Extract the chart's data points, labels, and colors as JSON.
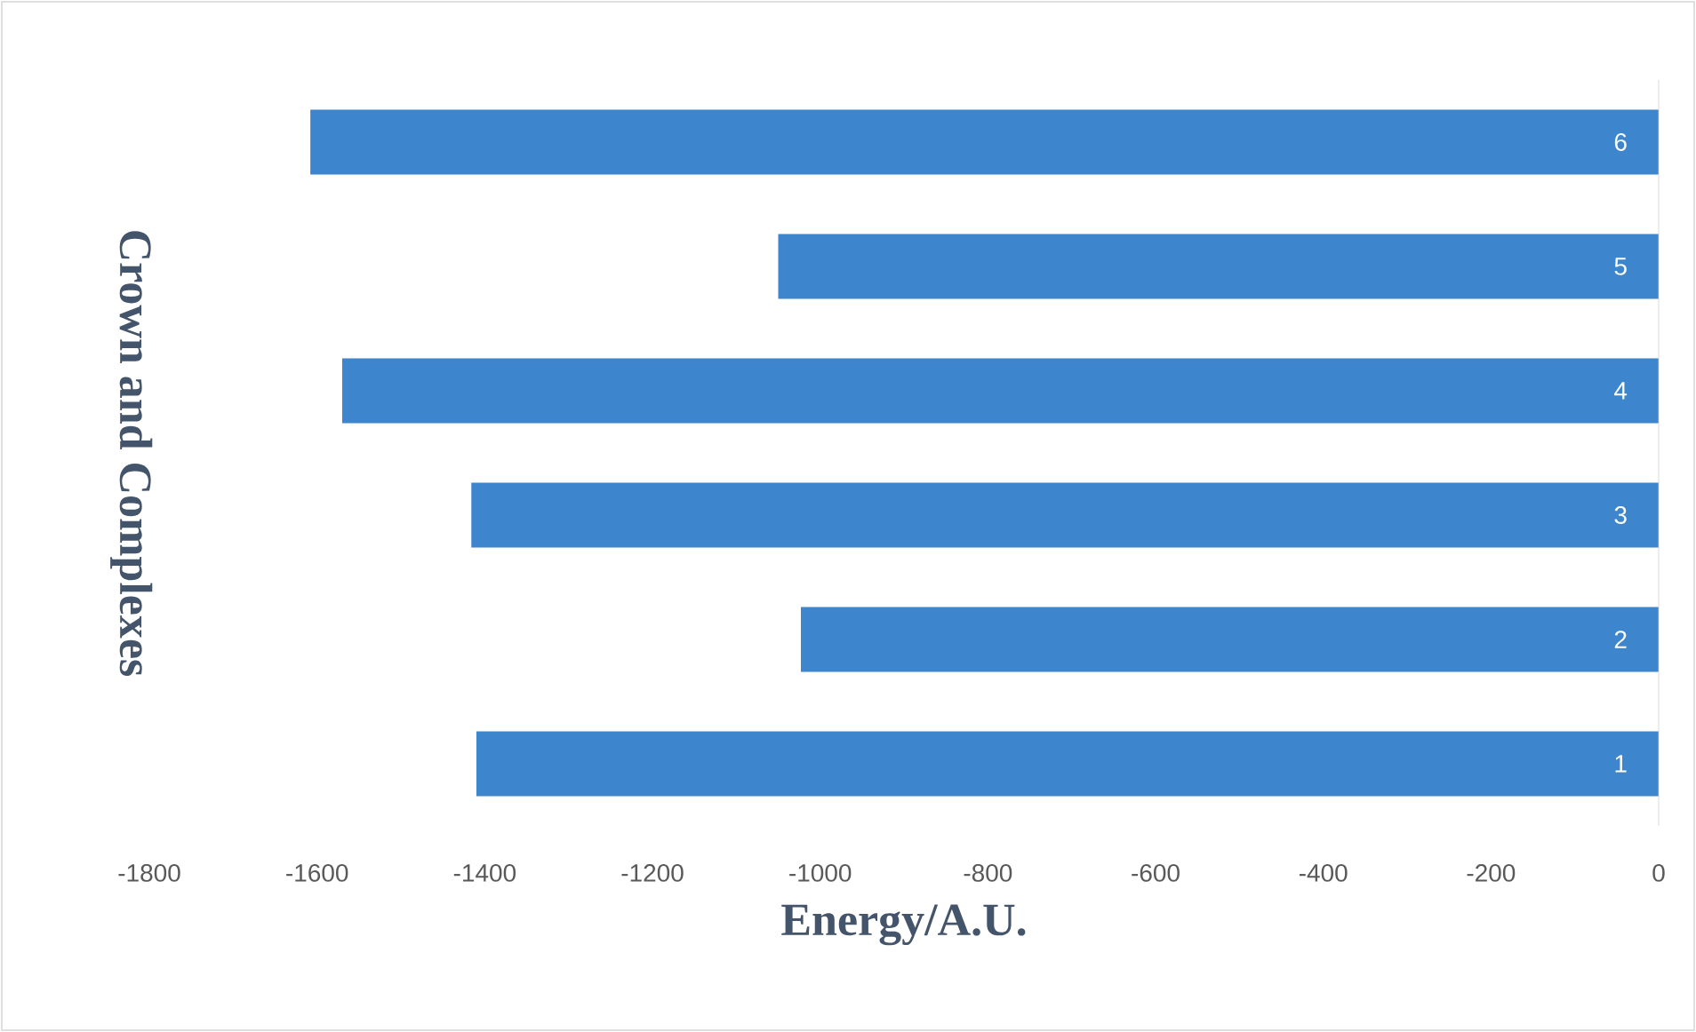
{
  "chart_data": {
    "type": "bar",
    "orientation": "horizontal",
    "xlabel": "Energy/A.U.",
    "ylabel": "Crown and Complexes",
    "categories": [
      "6",
      "5",
      "4",
      "3",
      "2",
      "1"
    ],
    "values": [
      -1608,
      -1050,
      -1570,
      -1416,
      -1023,
      -1410
    ],
    "color": "#3d85cc",
    "xlim": [
      -1800,
      0
    ],
    "xticks": [
      -1800,
      -1600,
      -1400,
      -1200,
      -1000,
      -800,
      -600,
      -400,
      -200,
      0
    ]
  }
}
